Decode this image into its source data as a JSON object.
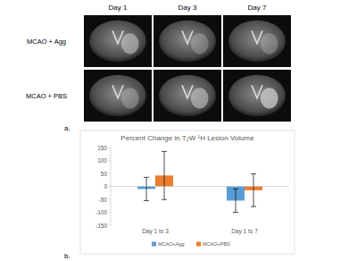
{
  "panel_a": {
    "label": "a.",
    "columns": [
      "Day 1",
      "Day 3",
      "Day 7"
    ],
    "rows": [
      "MCAO + Agg",
      "MCAO + PBS"
    ]
  },
  "panel_b": {
    "label": "b."
  },
  "chart_data": {
    "type": "bar",
    "title": "Percent Change in T₂W ¹H Lesion Volume",
    "categories": [
      "Day 1 to 3",
      "Day 1 to 7"
    ],
    "series": [
      {
        "name": "MCAO+Agg",
        "color": "#5b9bd5",
        "values": [
          -10,
          -55
        ],
        "errors": [
          45,
          45
        ]
      },
      {
        "name": "MCAO+PBS",
        "color": "#ed7d31",
        "values": [
          42,
          -15
        ],
        "errors": [
          93,
          63
        ]
      }
    ],
    "ylim": [
      -150,
      150
    ],
    "yticks": [
      -150,
      -100,
      -50,
      0,
      50,
      100,
      150
    ],
    "grid": false,
    "legend": "bottom"
  }
}
